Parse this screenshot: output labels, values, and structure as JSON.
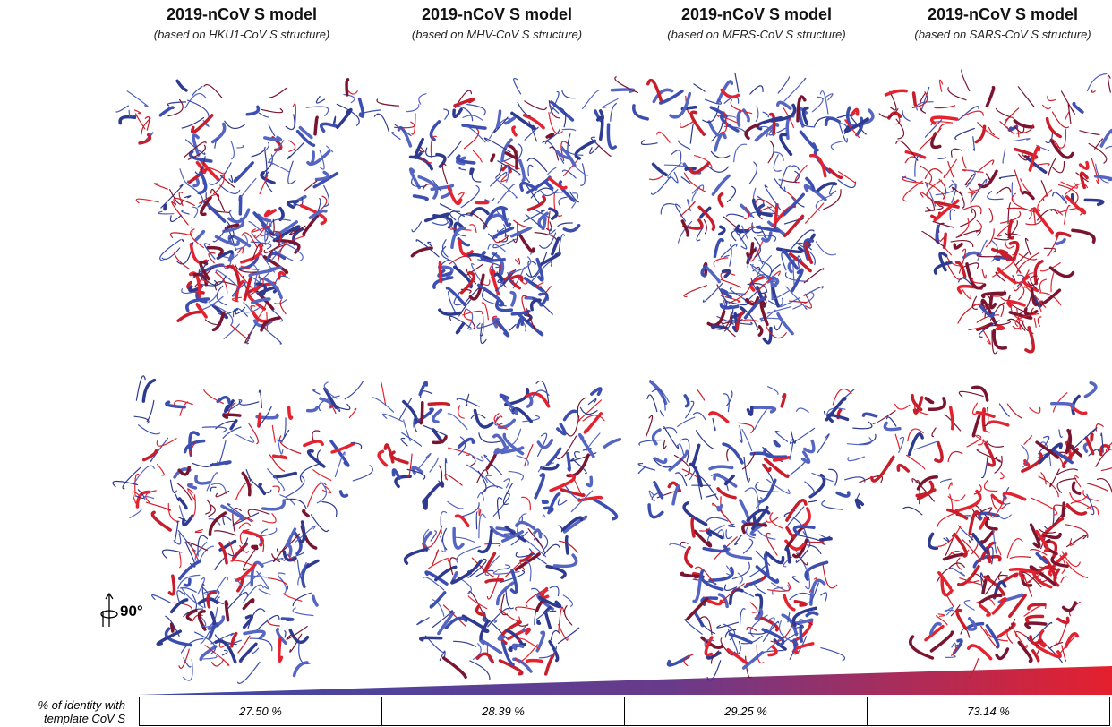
{
  "columns": [
    {
      "title": "2019-nCoV S model",
      "subtitle": "(based on HKU1-CoV S structure)",
      "identity": "27.50 %"
    },
    {
      "title": "2019-nCoV S model",
      "subtitle": "(based on MHV-CoV S structure)",
      "identity": "28.39 %"
    },
    {
      "title": "2019-nCoV S model",
      "subtitle": "(based on MERS-CoV S structure)",
      "identity": "29.25 %"
    },
    {
      "title": "2019-nCoV S model",
      "subtitle": "(based on SARS-CoV S structure)",
      "identity": "73.14 %"
    }
  ],
  "rotation": {
    "label": "90°"
  },
  "identity_row": {
    "label": "% of identity with template CoV S"
  }
}
